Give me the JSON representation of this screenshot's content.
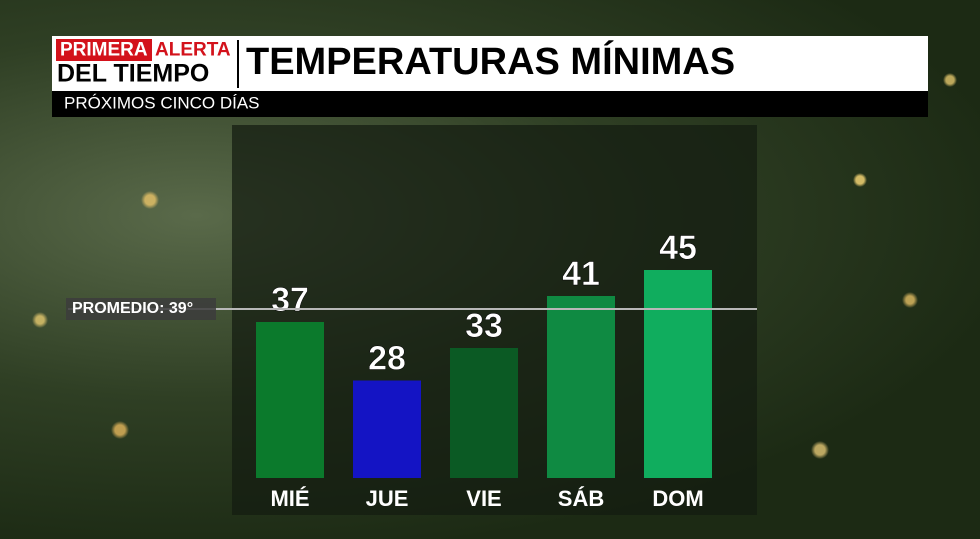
{
  "header": {
    "brand_top_left": "PRIMERA",
    "brand_top_right": "ALERTA",
    "brand_bottom": "DEL TIEMPO"
  },
  "chart_data": {
    "type": "bar",
    "title": "TEMPERATURAS MÍNIMAS",
    "subtitle": "PRÓXIMOS CINCO DÍAS",
    "categories": [
      "MIÉ",
      "JUE",
      "VIE",
      "SÁB",
      "DOM"
    ],
    "values": [
      37,
      28,
      33,
      41,
      45
    ],
    "colors": [
      "#0b7a2c",
      "#1414c4",
      "#0b5a24",
      "#0f8a42",
      "#10ad5e"
    ],
    "ylim": [
      13,
      70
    ],
    "average": {
      "value": 39,
      "label": "PROMEDIO: 39°"
    }
  }
}
